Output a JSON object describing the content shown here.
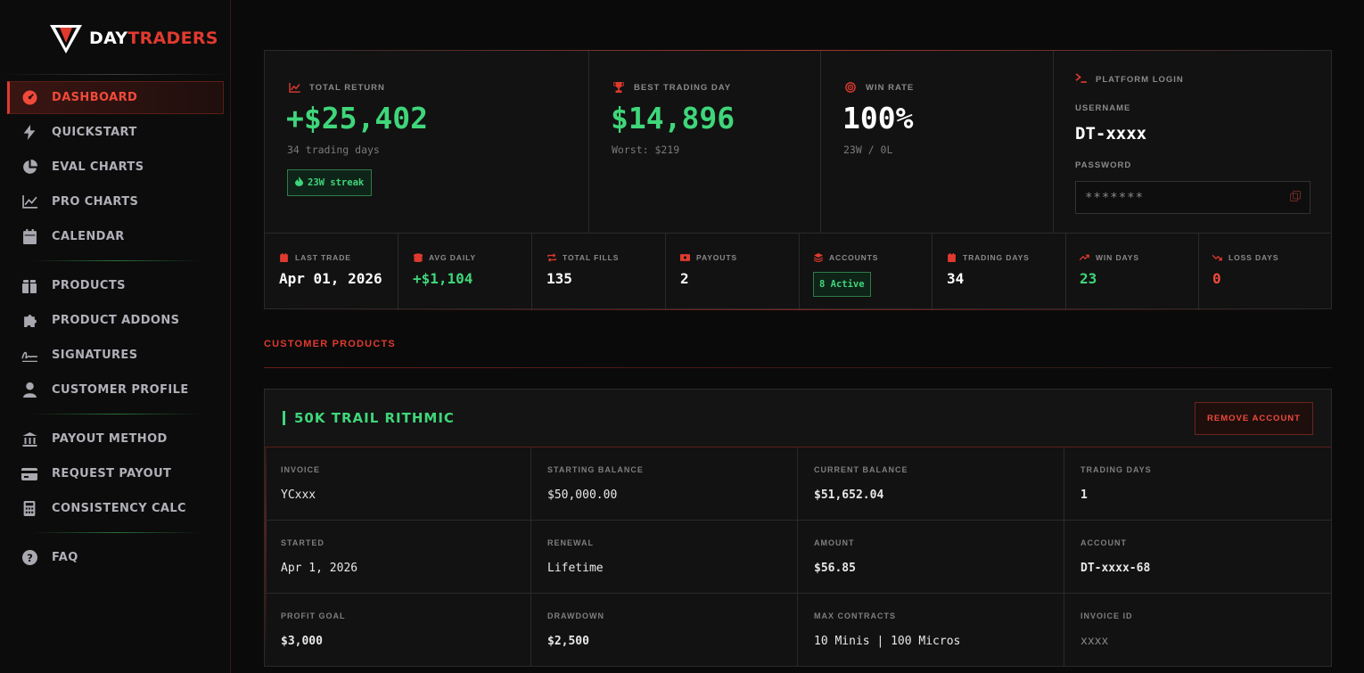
{
  "brand": {
    "day": "DAY",
    "traders": "TRADERS"
  },
  "sidebar": {
    "items": [
      {
        "label": "DASHBOARD",
        "icon": "gauge-icon"
      },
      {
        "label": "QUICKSTART",
        "icon": "bolt-icon"
      },
      {
        "label": "EVAL CHARTS",
        "icon": "pie-chart-icon"
      },
      {
        "label": "PRO CHARTS",
        "icon": "line-chart-icon"
      },
      {
        "label": "CALENDAR",
        "icon": "calendar-icon"
      },
      {
        "label": "PRODUCTS",
        "icon": "box-icon"
      },
      {
        "label": "PRODUCT ADDONS",
        "icon": "puzzle-icon"
      },
      {
        "label": "SIGNATURES",
        "icon": "signature-icon"
      },
      {
        "label": "CUSTOMER PROFILE",
        "icon": "user-icon"
      },
      {
        "label": "PAYOUT METHOD",
        "icon": "bank-icon"
      },
      {
        "label": "REQUEST PAYOUT",
        "icon": "credit-card-icon"
      },
      {
        "label": "CONSISTENCY CALC",
        "icon": "calculator-icon"
      },
      {
        "label": "FAQ",
        "icon": "question-icon"
      }
    ]
  },
  "stats": {
    "total_return": {
      "label": "TOTAL RETURN",
      "value": "+$25,402",
      "sub": "34 trading days",
      "streak": "23W streak"
    },
    "best_day": {
      "label": "BEST TRADING DAY",
      "value": "$14,896",
      "sub": "Worst: $219"
    },
    "win_rate": {
      "label": "WIN RATE",
      "value": "100%",
      "sub": "23W / 0L"
    }
  },
  "login": {
    "title": "PLATFORM LOGIN",
    "username_label": "USERNAME",
    "username": "DT-xxxx",
    "password_label": "PASSWORD",
    "password": "*******"
  },
  "mini_stats": [
    {
      "label": "LAST TRADE",
      "value": "Apr 01, 2026",
      "icon": "calendar-icon"
    },
    {
      "label": "AVG DAILY",
      "value": "+$1,104",
      "icon": "coins-icon"
    },
    {
      "label": "TOTAL FILLS",
      "value": "135",
      "icon": "repeat-icon"
    },
    {
      "label": "PAYOUTS",
      "value": "2",
      "icon": "money-icon"
    },
    {
      "label": "ACCOUNTS",
      "value": "8 Active",
      "icon": "layers-icon"
    },
    {
      "label": "TRADING DAYS",
      "value": "34",
      "icon": "calendar-icon"
    },
    {
      "label": "WIN DAYS",
      "value": "23",
      "icon": "trend-up-icon"
    },
    {
      "label": "LOSS DAYS",
      "value": "0",
      "icon": "trend-down-icon"
    }
  ],
  "section": {
    "title": "CUSTOMER PRODUCTS"
  },
  "product": {
    "name": "50K TRAIL RITHMIC",
    "remove_label": "REMOVE ACCOUNT",
    "fields": [
      {
        "label": "INVOICE",
        "value": "YCxxx"
      },
      {
        "label": "STARTING BALANCE",
        "value": "$50,000.00"
      },
      {
        "label": "CURRENT BALANCE",
        "value": "$51,652.04"
      },
      {
        "label": "TRADING DAYS",
        "value": "1"
      },
      {
        "label": "STARTED",
        "value": "Apr 1, 2026"
      },
      {
        "label": "RENEWAL",
        "value": "Lifetime"
      },
      {
        "label": "AMOUNT",
        "value": "$56.85"
      },
      {
        "label": "ACCOUNT",
        "value": "DT-xxxx-68"
      },
      {
        "label": "PROFIT GOAL",
        "value": "$3,000"
      },
      {
        "label": "DRAWDOWN",
        "value": "$2,500"
      },
      {
        "label": "MAX CONTRACTS",
        "value": "10 Minis | 100 Micros"
      },
      {
        "label": "INVOICE ID",
        "value": "xxxx"
      }
    ]
  },
  "colors": {
    "accent": "#e03a2f",
    "positive": "#3fd67a",
    "background": "#0a0a0a"
  }
}
